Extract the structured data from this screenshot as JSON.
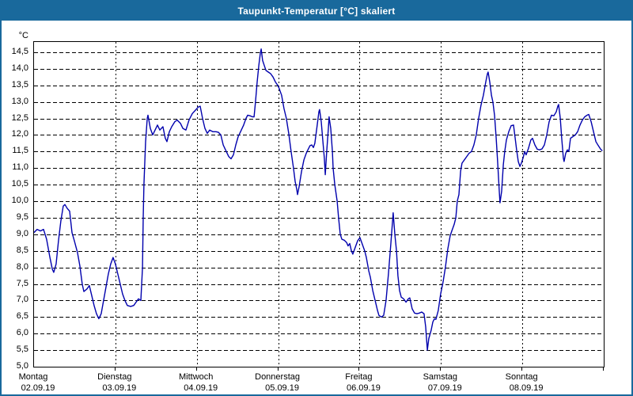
{
  "window": {
    "title": "Taupunkt-Temperatur [°C] skaliert"
  },
  "colors": {
    "titlebar": "#19699c",
    "window_border": "#19699c",
    "line": "#0000ad",
    "grid": "#000000",
    "background": "#ffffff"
  },
  "chart_data": {
    "type": "line",
    "title": "Taupunkt-Temperatur [°C] skaliert",
    "grid": true,
    "legend": "none",
    "y_axis": {
      "unit_label": "°C",
      "min": 5.0,
      "max": 14.81,
      "tick_start": 5.0,
      "tick_step": 0.5,
      "tick_max": 14.5,
      "decimal_separator": ","
    },
    "x_axis": {
      "total_hours": 168,
      "gridline_every_hours": 24,
      "days": [
        {
          "name": "Montag",
          "date": "02.09.19"
        },
        {
          "name": "Dienstag",
          "date": "03.09.19"
        },
        {
          "name": "Mittwoch",
          "date": "04.09.19"
        },
        {
          "name": "Donnerstag",
          "date": "05.09.19"
        },
        {
          "name": "Freitag",
          "date": "06.09.19"
        },
        {
          "name": "Samstag",
          "date": "07.09.19"
        },
        {
          "name": "Sonntag",
          "date": "08.09.19"
        }
      ]
    },
    "series": [
      {
        "name": "Taupunkt-Temperatur",
        "color": "#0000ad",
        "points_hours_value": [
          [
            0,
            9.05
          ],
          [
            0.9,
            9.15
          ],
          [
            1.9,
            9.1
          ],
          [
            2.8,
            9.15
          ],
          [
            3.7,
            8.85
          ],
          [
            4.7,
            8.3
          ],
          [
            5.4,
            7.95
          ],
          [
            5.8,
            7.85
          ],
          [
            6.5,
            8.1
          ],
          [
            7.2,
            8.8
          ],
          [
            7.9,
            9.4
          ],
          [
            8.6,
            9.85
          ],
          [
            9.1,
            9.9
          ],
          [
            9.8,
            9.78
          ],
          [
            10.5,
            9.7
          ],
          [
            11.2,
            9.05
          ],
          [
            11.9,
            8.8
          ],
          [
            12.8,
            8.45
          ],
          [
            13.5,
            8.05
          ],
          [
            14.2,
            7.5
          ],
          [
            14.7,
            7.27
          ],
          [
            15.6,
            7.35
          ],
          [
            16.3,
            7.45
          ],
          [
            17,
            7.15
          ],
          [
            17.7,
            6.85
          ],
          [
            18.4,
            6.6
          ],
          [
            19.1,
            6.45
          ],
          [
            19.8,
            6.6
          ],
          [
            20.5,
            7
          ],
          [
            21.2,
            7.4
          ],
          [
            21.9,
            7.8
          ],
          [
            22.6,
            8.1
          ],
          [
            23.3,
            8.3
          ],
          [
            24,
            8.1
          ],
          [
            24.7,
            7.8
          ],
          [
            25.4,
            7.5
          ],
          [
            26.1,
            7.2
          ],
          [
            26.8,
            7
          ],
          [
            27.5,
            6.85
          ],
          [
            28.5,
            6.82
          ],
          [
            29.4,
            6.85
          ],
          [
            30.1,
            6.95
          ],
          [
            30.8,
            7.05
          ],
          [
            31.5,
            7
          ],
          [
            32,
            8
          ],
          [
            32.2,
            9.5
          ],
          [
            32.4,
            10.5
          ],
          [
            32.9,
            11.8
          ],
          [
            33.4,
            12.5
          ],
          [
            33.6,
            12.6
          ],
          [
            34.3,
            12.2
          ],
          [
            35,
            12
          ],
          [
            35.7,
            12.15
          ],
          [
            36.4,
            12.3
          ],
          [
            37.1,
            12.15
          ],
          [
            38,
            12.25
          ],
          [
            38.7,
            11.9
          ],
          [
            39.2,
            11.8
          ],
          [
            39.9,
            12.1
          ],
          [
            40.6,
            12.25
          ],
          [
            41.5,
            12.4
          ],
          [
            42.2,
            12.45
          ],
          [
            43.2,
            12.35
          ],
          [
            43.9,
            12.2
          ],
          [
            44.8,
            12.15
          ],
          [
            45.7,
            12.45
          ],
          [
            46.7,
            12.65
          ],
          [
            47.6,
            12.75
          ],
          [
            48.5,
            12.85
          ],
          [
            49,
            12.87
          ],
          [
            49.7,
            12.5
          ],
          [
            50.4,
            12.2
          ],
          [
            51.1,
            12.05
          ],
          [
            51.8,
            12.15
          ],
          [
            52.7,
            12.1
          ],
          [
            53.7,
            12.1
          ],
          [
            54.4,
            12.08
          ],
          [
            55.1,
            12
          ],
          [
            55.8,
            11.7
          ],
          [
            56.7,
            11.5
          ],
          [
            57.4,
            11.35
          ],
          [
            58.1,
            11.28
          ],
          [
            58.8,
            11.4
          ],
          [
            59.5,
            11.7
          ],
          [
            60.2,
            11.95
          ],
          [
            60.9,
            12.1
          ],
          [
            61.8,
            12.3
          ],
          [
            62.5,
            12.5
          ],
          [
            63,
            12.6
          ],
          [
            63.7,
            12.58
          ],
          [
            64.4,
            12.55
          ],
          [
            64.9,
            12.55
          ],
          [
            65.3,
            13
          ],
          [
            65.8,
            13.6
          ],
          [
            66.3,
            14.1
          ],
          [
            66.7,
            14.45
          ],
          [
            67,
            14.6
          ],
          [
            67.4,
            14.25
          ],
          [
            67.9,
            14.1
          ],
          [
            68.4,
            13.95
          ],
          [
            69.1,
            13.9
          ],
          [
            69.8,
            13.85
          ],
          [
            70.5,
            13.75
          ],
          [
            71.2,
            13.6
          ],
          [
            71.9,
            13.5
          ],
          [
            72.3,
            13.4
          ],
          [
            73,
            13.2
          ],
          [
            73.7,
            12.8
          ],
          [
            74.4,
            12.5
          ],
          [
            75.1,
            12.05
          ],
          [
            75.8,
            11.5
          ],
          [
            76.5,
            11
          ],
          [
            77,
            10.6
          ],
          [
            77.5,
            10.35
          ],
          [
            77.7,
            10.2
          ],
          [
            78.2,
            10.45
          ],
          [
            78.9,
            10.9
          ],
          [
            79.6,
            11.25
          ],
          [
            80.3,
            11.45
          ],
          [
            81,
            11.6
          ],
          [
            81.4,
            11.68
          ],
          [
            81.9,
            11.7
          ],
          [
            82.4,
            11.62
          ],
          [
            82.8,
            11.75
          ],
          [
            83.5,
            12.3
          ],
          [
            84,
            12.7
          ],
          [
            84.2,
            12.77
          ],
          [
            84.7,
            12.4
          ],
          [
            85.2,
            11.8
          ],
          [
            85.6,
            11.3
          ],
          [
            85.9,
            10.8
          ],
          [
            86.3,
            11.5
          ],
          [
            86.8,
            12.2
          ],
          [
            87,
            12.55
          ],
          [
            87.5,
            12.2
          ],
          [
            88,
            11.5
          ],
          [
            88.2,
            11
          ],
          [
            88.7,
            10.5
          ],
          [
            89.4,
            10
          ],
          [
            89.8,
            9.5
          ],
          [
            90.3,
            9
          ],
          [
            90.8,
            8.85
          ],
          [
            91.5,
            8.82
          ],
          [
            92.2,
            8.75
          ],
          [
            92.6,
            8.65
          ],
          [
            93.1,
            8.72
          ],
          [
            93.6,
            8.5
          ],
          [
            94,
            8.4
          ],
          [
            94.7,
            8.6
          ],
          [
            95.4,
            8.8
          ],
          [
            96.1,
            8.9
          ],
          [
            96.8,
            8.7
          ],
          [
            97.5,
            8.5
          ],
          [
            98,
            8.3
          ],
          [
            98.7,
            7.9
          ],
          [
            99.2,
            7.7
          ],
          [
            99.9,
            7.3
          ],
          [
            100.6,
            7
          ],
          [
            101.3,
            6.7
          ],
          [
            101.7,
            6.55
          ],
          [
            102.4,
            6.5
          ],
          [
            103.1,
            6.55
          ],
          [
            103.8,
            7
          ],
          [
            104.5,
            7.8
          ],
          [
            105.2,
            8.7
          ],
          [
            105.9,
            9.65
          ],
          [
            106.4,
            9
          ],
          [
            106.9,
            8.5
          ],
          [
            107.3,
            7.75
          ],
          [
            107.8,
            7.3
          ],
          [
            108.3,
            7.1
          ],
          [
            109,
            7.05
          ],
          [
            109.7,
            6.95
          ],
          [
            110.4,
            7.05
          ],
          [
            110.8,
            7.08
          ],
          [
            111.5,
            6.75
          ],
          [
            112.2,
            6.62
          ],
          [
            112.9,
            6.6
          ],
          [
            113.6,
            6.62
          ],
          [
            114.3,
            6.65
          ],
          [
            115,
            6.6
          ],
          [
            115.5,
            6.2
          ],
          [
            116,
            5.5
          ],
          [
            116.4,
            5.85
          ],
          [
            117.1,
            6.1
          ],
          [
            117.6,
            6.35
          ],
          [
            118.1,
            6.45
          ],
          [
            118.5,
            6.43
          ],
          [
            119.2,
            6.7
          ],
          [
            119.9,
            7.2
          ],
          [
            120.6,
            7.55
          ],
          [
            121.3,
            8
          ],
          [
            122,
            8.55
          ],
          [
            122.7,
            8.95
          ],
          [
            123.2,
            9.1
          ],
          [
            123.9,
            9.3
          ],
          [
            124.4,
            9.5
          ],
          [
            124.8,
            10
          ],
          [
            125.3,
            10.2
          ],
          [
            125.8,
            10.9
          ],
          [
            126.2,
            11.15
          ],
          [
            126.9,
            11.25
          ],
          [
            127.6,
            11.35
          ],
          [
            128.3,
            11.45
          ],
          [
            129,
            11.5
          ],
          [
            129.7,
            11.7
          ],
          [
            130.4,
            12
          ],
          [
            131.1,
            12.5
          ],
          [
            131.8,
            12.9
          ],
          [
            132.5,
            13.2
          ],
          [
            133.2,
            13.6
          ],
          [
            133.7,
            13.85
          ],
          [
            133.9,
            13.9
          ],
          [
            134.4,
            13.6
          ],
          [
            134.9,
            13.2
          ],
          [
            135.3,
            13
          ],
          [
            135.8,
            12.6
          ],
          [
            136.3,
            11.9
          ],
          [
            136.7,
            11.2
          ],
          [
            137.2,
            10.3
          ],
          [
            137.4,
            9.95
          ],
          [
            137.9,
            10.3
          ],
          [
            138.4,
            11.1
          ],
          [
            138.8,
            11.5
          ],
          [
            139.3,
            11.85
          ],
          [
            140,
            12.1
          ],
          [
            140.7,
            12.28
          ],
          [
            141.4,
            12.3
          ],
          [
            141.9,
            11.9
          ],
          [
            142.3,
            11.55
          ],
          [
            142.8,
            11.2
          ],
          [
            143.3,
            11.05
          ],
          [
            143.7,
            11.15
          ],
          [
            144.2,
            11.3
          ],
          [
            144.7,
            11.5
          ],
          [
            145.1,
            11.4
          ],
          [
            145.8,
            11.6
          ],
          [
            146.5,
            11.85
          ],
          [
            147,
            11.9
          ],
          [
            147.7,
            11.7
          ],
          [
            148.4,
            11.57
          ],
          [
            149.1,
            11.55
          ],
          [
            149.8,
            11.58
          ],
          [
            150.5,
            11.7
          ],
          [
            151.2,
            12
          ],
          [
            151.9,
            12.4
          ],
          [
            152.6,
            12.6
          ],
          [
            153.3,
            12.58
          ],
          [
            154,
            12.7
          ],
          [
            154.5,
            12.88
          ],
          [
            154.7,
            12.92
          ],
          [
            155.2,
            12.5
          ],
          [
            155.6,
            11.9
          ],
          [
            156.1,
            11.3
          ],
          [
            156.3,
            11.2
          ],
          [
            156.8,
            11.45
          ],
          [
            157.3,
            11.55
          ],
          [
            157.7,
            11.5
          ],
          [
            158.2,
            11.9
          ],
          [
            158.9,
            11.95
          ],
          [
            159.6,
            12
          ],
          [
            160.3,
            12.1
          ],
          [
            161,
            12.3
          ],
          [
            161.7,
            12.45
          ],
          [
            162.4,
            12.55
          ],
          [
            163.1,
            12.6
          ],
          [
            163.6,
            12.62
          ],
          [
            164.3,
            12.4
          ],
          [
            165,
            12.1
          ],
          [
            165.7,
            11.8
          ],
          [
            166.4,
            11.68
          ],
          [
            167.1,
            11.57
          ],
          [
            167.6,
            11.52
          ]
        ]
      }
    ]
  }
}
